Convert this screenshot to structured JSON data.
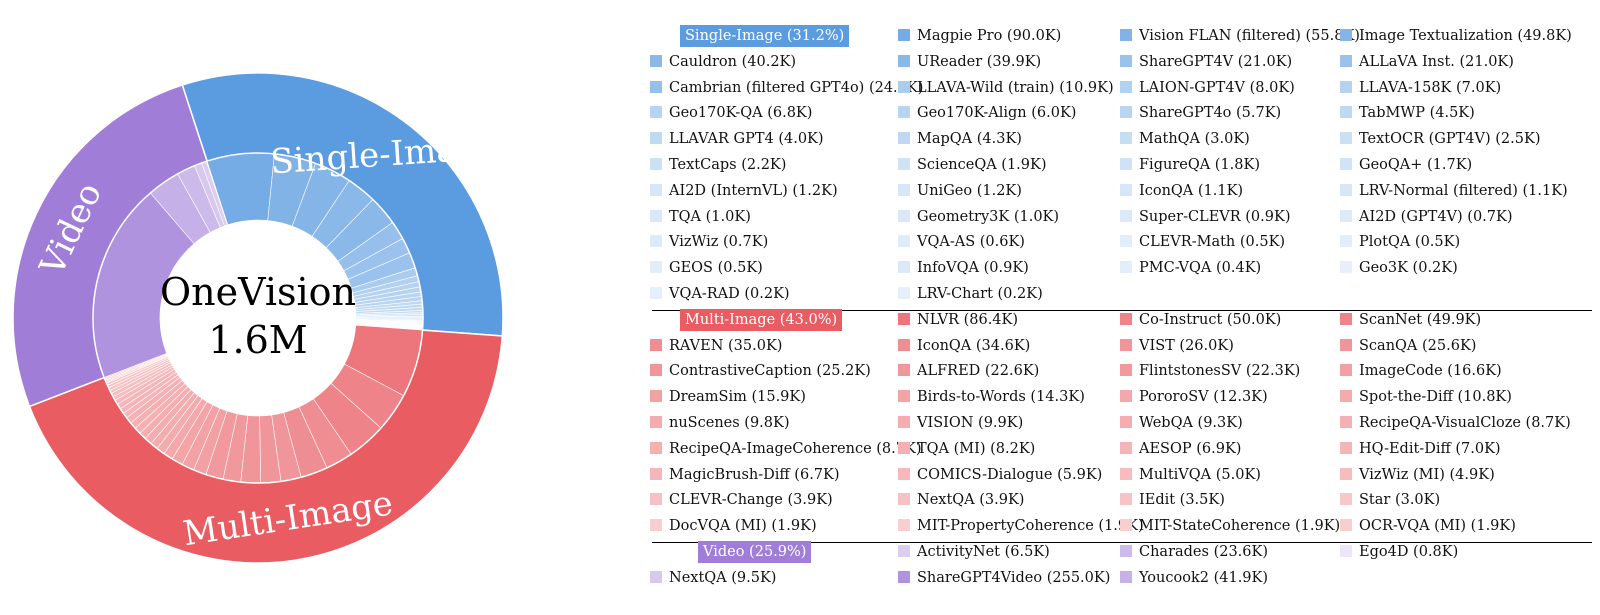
{
  "chart_data": {
    "type": "sunburst",
    "center_title": "OneVision",
    "center_subtitle": "1.6M",
    "categories": [
      {
        "name": "Single-Image",
        "header": "Single-Image (31.2%)",
        "percent": 31.2,
        "ring_color": "#5b9ce0",
        "items": [
          [
            "Magpie Pro (90.0K)",
            "Magpie Pro",
            90.0
          ],
          [
            "Vision FLAN (filtered) (55.8K)",
            "Vision FLAN (filtered)",
            55.8
          ],
          [
            "Image Textualization (49.8K)",
            "Image Textualization",
            49.8
          ],
          [
            "Cauldron (40.2K)",
            "Cauldron",
            40.2
          ],
          [
            "UReader (39.9K)",
            "UReader",
            39.9
          ],
          [
            "ShareGPT4V (21.0K)",
            "ShareGPT4V",
            21.0
          ],
          [
            "ALLaVA Inst. (21.0K)",
            "ALLaVA Inst.",
            21.0
          ],
          [
            "Cambrian (filtered GPT4o) (24.9K)",
            "Cambrian (filtered GPT4o)",
            24.9
          ],
          [
            "LLAVA-Wild (train) (10.9K)",
            "LLAVA-Wild (train)",
            10.9
          ],
          [
            "LAION-GPT4V (8.0K)",
            "LAION-GPT4V",
            8.0
          ],
          [
            "LLAVA-158K (7.0K)",
            "LLAVA-158K",
            7.0
          ],
          [
            "Geo170K-QA (6.8K)",
            "Geo170K-QA",
            6.8
          ],
          [
            "Geo170K-Align (6.0K)",
            "Geo170K-Align",
            6.0
          ],
          [
            "ShareGPT4o (5.7K)",
            "ShareGPT4o",
            5.7
          ],
          [
            "TabMWP (4.5K)",
            "TabMWP",
            4.5
          ],
          [
            "LLAVAR GPT4 (4.0K)",
            "LLAVAR GPT4",
            4.0
          ],
          [
            "MapQA (4.3K)",
            "MapQA",
            4.3
          ],
          [
            "MathQA (3.0K)",
            "MathQA",
            3.0
          ],
          [
            "TextOCR (GPT4V) (2.5K)",
            "TextOCR (GPT4V)",
            2.5
          ],
          [
            "TextCaps (2.2K)",
            "TextCaps",
            2.2
          ],
          [
            "ScienceQA (1.9K)",
            "ScienceQA",
            1.9
          ],
          [
            "FigureQA (1.8K)",
            "FigureQA",
            1.8
          ],
          [
            "GeoQA+ (1.7K)",
            "GeoQA+",
            1.7
          ],
          [
            "AI2D (InternVL) (1.2K)",
            "AI2D (InternVL)",
            1.2
          ],
          [
            "UniGeo (1.2K)",
            "UniGeo",
            1.2
          ],
          [
            "IconQA (1.1K)",
            "IconQA",
            1.1
          ],
          [
            "LRV-Normal (filtered) (1.1K)",
            "LRV-Normal (filtered)",
            1.1
          ],
          [
            "TQA (1.0K)",
            "TQA",
            1.0
          ],
          [
            "Geometry3K (1.0K)",
            "Geometry3K",
            1.0
          ],
          [
            "Super-CLEVR (0.9K)",
            "Super-CLEVR",
            0.9
          ],
          [
            "AI2D (GPT4V) (0.7K)",
            "AI2D (GPT4V)",
            0.7
          ],
          [
            "VizWiz (0.7K)",
            "VizWiz",
            0.7
          ],
          [
            "VQA-AS (0.6K)",
            "VQA-AS",
            0.6
          ],
          [
            "CLEVR-Math (0.5K)",
            "CLEVR-Math",
            0.5
          ],
          [
            "PlotQA (0.5K)",
            "PlotQA",
            0.5
          ],
          [
            "GEOS (0.5K)",
            "GEOS",
            0.5
          ],
          [
            "InfoVQA (0.9K)",
            "InfoVQA",
            0.9
          ],
          [
            "PMC-VQA (0.4K)",
            "PMC-VQA",
            0.4
          ],
          [
            "Geo3K (0.2K)",
            "Geo3K",
            0.2
          ],
          [
            "VQA-RAD (0.2K)",
            "VQA-RAD",
            0.2
          ],
          [
            "LRV-Chart (0.2K)",
            "LRV-Chart",
            0.2
          ]
        ]
      },
      {
        "name": "Multi-Image",
        "header": "Multi-Image (43.0%)",
        "percent": 43.0,
        "ring_color": "#e85c62",
        "items": [
          [
            "NLVR (86.4K)",
            "NLVR",
            86.4
          ],
          [
            "Co-Instruct (50.0K)",
            "Co-Instruct",
            50.0
          ],
          [
            "ScanNet (49.9K)",
            "ScanNet",
            49.9
          ],
          [
            "RAVEN (35.0K)",
            "RAVEN",
            35.0
          ],
          [
            "IconQA (34.6K)",
            "IconQA",
            34.6
          ],
          [
            "VIST (26.0K)",
            "VIST",
            26.0
          ],
          [
            "ScanQA (25.6K)",
            "ScanQA",
            25.6
          ],
          [
            "ContrastiveCaption (25.2K)",
            "ContrastiveCaption",
            25.2
          ],
          [
            "ALFRED (22.6K)",
            "ALFRED",
            22.6
          ],
          [
            "FlintstonesSV (22.3K)",
            "FlintstonesSV",
            22.3
          ],
          [
            "ImageCode (16.6K)",
            "ImageCode",
            16.6
          ],
          [
            "DreamSim (15.9K)",
            "DreamSim",
            15.9
          ],
          [
            "Birds-to-Words (14.3K)",
            "Birds-to-Words",
            14.3
          ],
          [
            "PororoSV (12.3K)",
            "PororoSV",
            12.3
          ],
          [
            "Spot-the-Diff (10.8K)",
            "Spot-the-Diff",
            10.8
          ],
          [
            "nuScenes (9.8K)",
            "nuScenes",
            9.8
          ],
          [
            "VISION (9.9K)",
            "VISION",
            9.9
          ],
          [
            "WebQA (9.3K)",
            "WebQA",
            9.3
          ],
          [
            "RecipeQA-VisualCloze (8.7K)",
            "RecipeQA-VisualCloze",
            8.7
          ],
          [
            "RecipeQA-ImageCoherence (8.7K)",
            "RecipeQA-ImageCoherence",
            8.7
          ],
          [
            "TQA (MI) (8.2K)",
            "TQA (MI)",
            8.2
          ],
          [
            "AESOP (6.9K)",
            "AESOP",
            6.9
          ],
          [
            "HQ-Edit-Diff (7.0K)",
            "HQ-Edit-Diff",
            7.0
          ],
          [
            "MagicBrush-Diff (6.7K)",
            "MagicBrush-Diff",
            6.7
          ],
          [
            "COMICS-Dialogue (5.9K)",
            "COMICS-Dialogue",
            5.9
          ],
          [
            "MultiVQA (5.0K)",
            "MultiVQA",
            5.0
          ],
          [
            "VizWiz (MI) (4.9K)",
            "VizWiz (MI)",
            4.9
          ],
          [
            "CLEVR-Change (3.9K)",
            "CLEVR-Change",
            3.9
          ],
          [
            "NextQA (3.9K)",
            "NextQA",
            3.9
          ],
          [
            "IEdit (3.5K)",
            "IEdit",
            3.5
          ],
          [
            "Star (3.0K)",
            "Star",
            3.0
          ],
          [
            "DocVQA (MI) (1.9K)",
            "DocVQA (MI)",
            1.9
          ],
          [
            "MIT-PropertyCoherence (1.9K)",
            "MIT-PropertyCoherence",
            1.9
          ],
          [
            "MIT-StateCoherence (1.9K)",
            "MIT-StateCoherence",
            1.9
          ],
          [
            "OCR-VQA (MI) (1.9K)",
            "OCR-VQA (MI)",
            1.9
          ]
        ]
      },
      {
        "name": "Video",
        "header": "Video (25.9%)",
        "percent": 25.9,
        "ring_color": "#a07ed8",
        "items": [
          [
            "ActivityNet (6.5K)",
            "ActivityNet",
            6.5
          ],
          [
            "Charades (23.6K)",
            "Charades",
            23.6
          ],
          [
            "Ego4D (0.8K)",
            "Ego4D",
            0.8
          ],
          [
            "NextQA (9.5K)",
            "NextQA",
            9.5
          ],
          [
            "ShareGPT4Video (255.0K)",
            "ShareGPT4Video",
            255.0
          ],
          [
            "Youcook2 (41.9K)",
            "Youcook2",
            41.9
          ]
        ]
      }
    ]
  }
}
